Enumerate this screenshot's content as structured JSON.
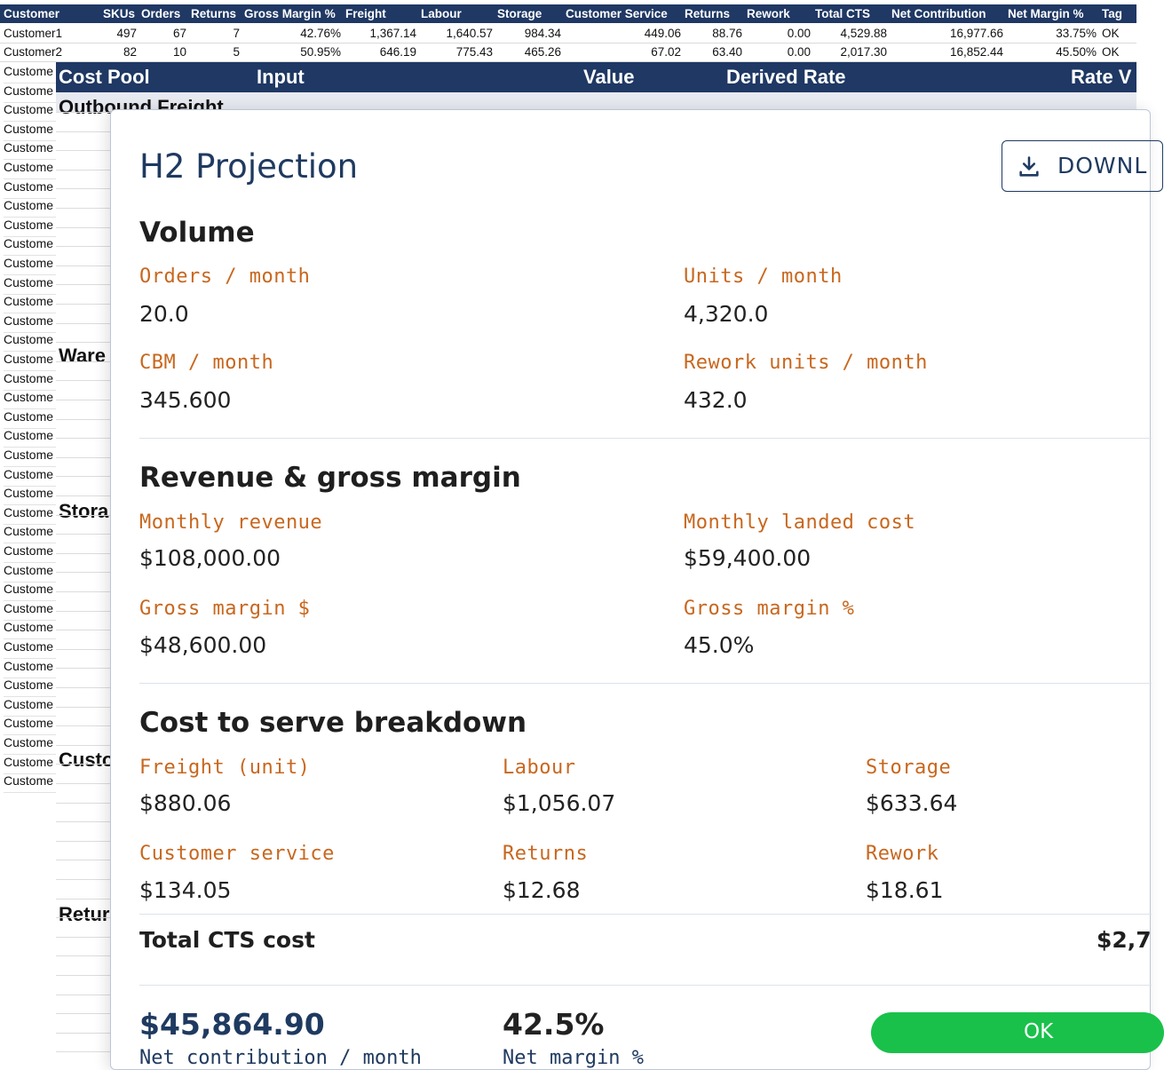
{
  "sheet": {
    "headers": [
      "Customer",
      "SKUs",
      "Orders",
      "Returns",
      "Gross Margin %",
      "Freight",
      "Labour",
      "Storage",
      "Customer Service",
      "Returns",
      "Rework",
      "Total CTS",
      "Net Contribution",
      "Net Margin %",
      "Tag"
    ],
    "rows": [
      [
        "Customer1",
        "497",
        "67",
        "7",
        "42.76%",
        "1,367.14",
        "1,640.57",
        "984.34",
        "449.06",
        "88.76",
        "0.00",
        "4,529.88",
        "16,977.66",
        "33.75%",
        "OK"
      ],
      [
        "Customer2",
        "82",
        "10",
        "5",
        "50.95%",
        "646.19",
        "775.43",
        "465.26",
        "67.02",
        "63.40",
        "0.00",
        "2,017.30",
        "16,852.44",
        "45.50%",
        "OK"
      ]
    ],
    "customer_stub": "Custome"
  },
  "pool": {
    "headers": [
      "Cost Pool",
      "Input",
      "Value",
      "Derived Rate",
      "Rate V"
    ],
    "sections": [
      "Outbound Freight",
      "Ware",
      "Stora",
      "Custo",
      "Retur"
    ]
  },
  "modal": {
    "title": "H2 Projection",
    "download_label": "DOWNL",
    "volume": {
      "title": "Volume",
      "orders_label": "Orders / month",
      "orders_value": "20.0",
      "units_label": "Units / month",
      "units_value": "4,320.0",
      "cbm_label": "CBM / month",
      "cbm_value": "345.600",
      "rework_label": "Rework units / month",
      "rework_value": "432.0"
    },
    "revenue": {
      "title": "Revenue & gross margin",
      "rev_label": "Monthly revenue",
      "rev_value": "$108,000.00",
      "landed_label": "Monthly landed cost",
      "landed_value": "$59,400.00",
      "gm_label": "Gross margin $",
      "gm_value": "$48,600.00",
      "gmp_label": "Gross margin %",
      "gmp_value": "45.0%"
    },
    "cts": {
      "title": "Cost to serve breakdown",
      "freight_label": "Freight (unit)",
      "freight_value": "$880.06",
      "labour_label": "Labour",
      "labour_value": "$1,056.07",
      "storage_label": "Storage",
      "storage_value": "$633.64",
      "cs_label": "Customer service",
      "cs_value": "$134.05",
      "returns_label": "Returns",
      "returns_value": "$12.68",
      "rework_label": "Rework",
      "rework_value": "$18.61",
      "total_label": "Total CTS cost",
      "total_value": "$2,7"
    },
    "summary": {
      "contribution_value": "$45,864.90",
      "contribution_label": "Net contribution / month",
      "margin_value": "42.5%",
      "margin_label": "Net margin %",
      "tag": "OK"
    }
  }
}
